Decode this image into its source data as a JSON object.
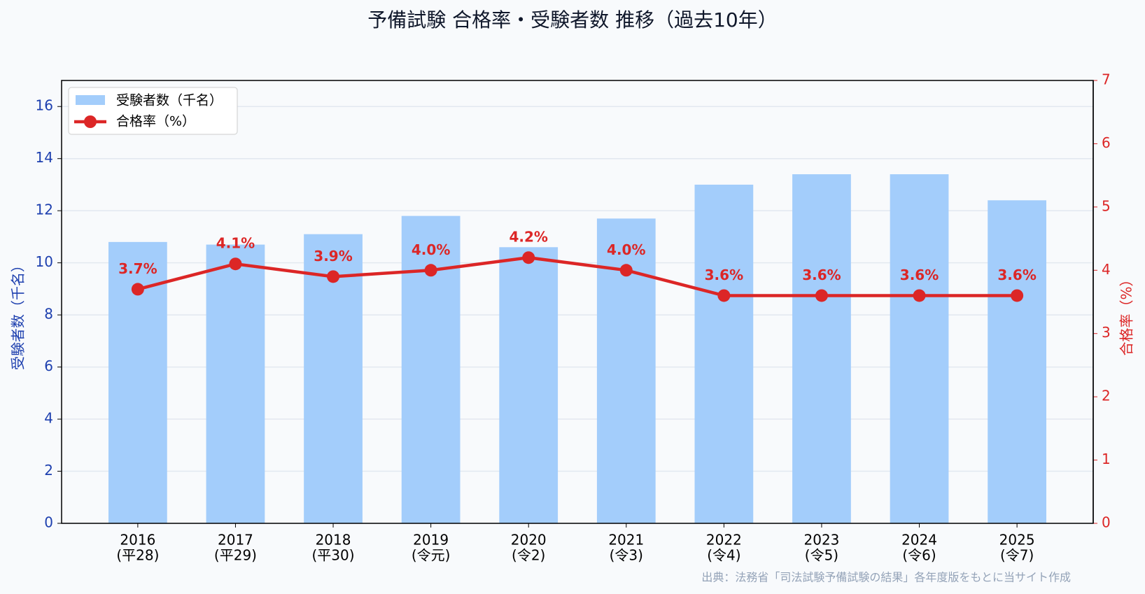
{
  "chart_data": {
    "type": "bar-line",
    "title": "予備試験 合格率・受験者数 推移（過去10年）",
    "categories": [
      "2016",
      "2017",
      "2018",
      "2019",
      "2020",
      "2021",
      "2022",
      "2023",
      "2024",
      "2025"
    ],
    "era_labels": [
      "(平28)",
      "(平29)",
      "(平30)",
      "(令元)",
      "(令2)",
      "(令3)",
      "(令4)",
      "(令5)",
      "(令6)",
      "(令7)"
    ],
    "ylabel": "受験者数（千名）",
    "y2label": "合格率（%）",
    "ylim": [
      0,
      17
    ],
    "yticks": [
      0,
      2,
      4,
      6,
      8,
      10,
      12,
      14,
      16
    ],
    "y2lim": [
      0,
      7
    ],
    "y2ticks": [
      0,
      1,
      2,
      3,
      4,
      5,
      6,
      7
    ],
    "grid": true,
    "legend": "upper-left",
    "series": [
      {
        "name": "受験者数（千名）",
        "color": "#a3cdfb",
        "values": [
          10.8,
          10.7,
          11.1,
          11.8,
          10.6,
          11.7,
          13.0,
          13.4,
          13.4,
          12.4
        ]
      },
      {
        "name": "合格率（%）",
        "color": "#dc2626",
        "axis": "y2",
        "values": [
          3.7,
          4.1,
          3.9,
          4.0,
          4.2,
          4.0,
          3.6,
          3.6,
          3.6,
          3.6
        ],
        "value_labels": [
          "3.7%",
          "4.1%",
          "3.9%",
          "4.0%",
          "4.2%",
          "4.0%",
          "3.6%",
          "3.6%",
          "3.6%",
          "3.6%"
        ]
      }
    ],
    "source": "出典：法務省「司法試験予備試験の結果」各年度版をもとに当サイト作成"
  }
}
